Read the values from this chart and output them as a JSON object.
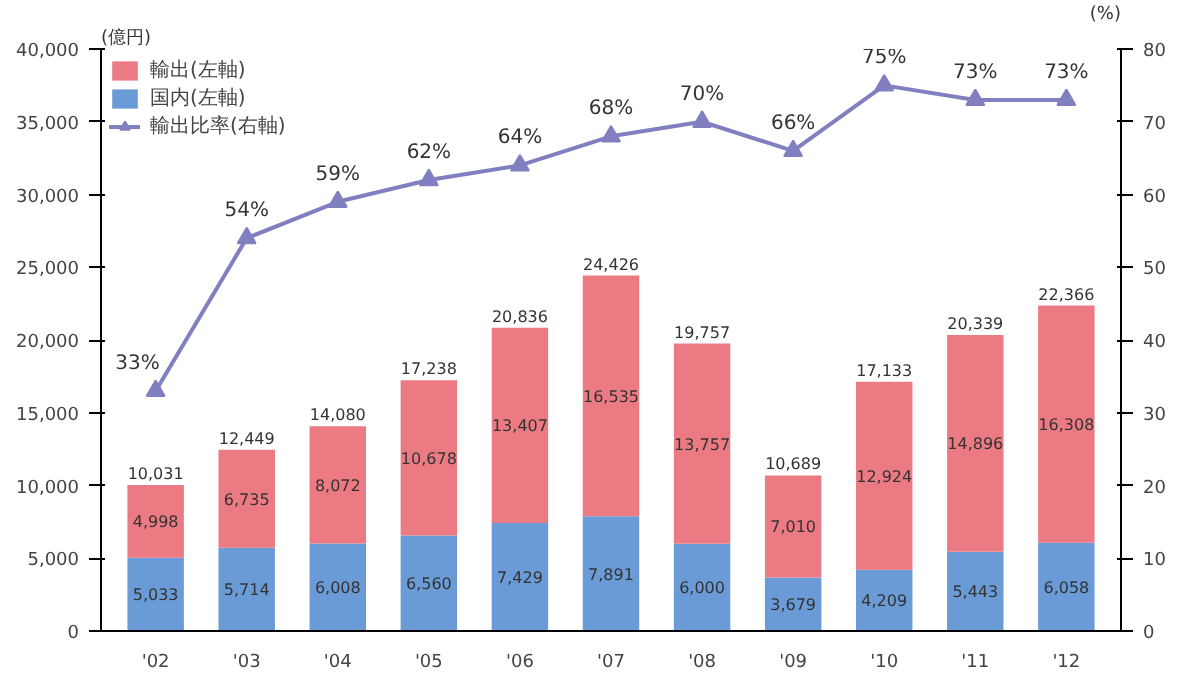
{
  "chart_data": {
    "type": "bar",
    "stacked": true,
    "ylabel": "(億円)",
    "y2label": "(%)",
    "categories": [
      "'02",
      "'03",
      "'04",
      "'05",
      "'06",
      "'07",
      "'08",
      "'09",
      "'10",
      "'11",
      "'12"
    ],
    "series": [
      {
        "name": "国内(左軸)",
        "color": "#6a9bd6",
        "values": [
          5033,
          5714,
          6008,
          6560,
          7429,
          7891,
          6000,
          3679,
          4209,
          5443,
          6058
        ],
        "value_labels": [
          "5,033",
          "5,714",
          "6,008",
          "6,560",
          "7,429",
          "7,891",
          "6,000",
          "3,679",
          "4,209",
          "5,443",
          "6,058"
        ]
      },
      {
        "name": "輸出(左軸)",
        "color": "#ec7a83",
        "values": [
          4998,
          6735,
          8072,
          10678,
          13407,
          16535,
          13757,
          7010,
          12924,
          14896,
          16308
        ],
        "value_labels": [
          "4,998",
          "6,735",
          "8,072",
          "10,678",
          "13,407",
          "16,535",
          "13,757",
          "7,010",
          "12,924",
          "14,896",
          "16,308"
        ]
      },
      {
        "name": "輸出比率(右軸)",
        "type": "line",
        "axis": "y2",
        "color": "#8080c0",
        "marker": "triangle",
        "values": [
          33,
          54,
          59,
          62,
          64,
          68,
          70,
          66,
          75,
          73,
          73
        ],
        "value_labels": [
          "33%",
          "54%",
          "59%",
          "62%",
          "64%",
          "68%",
          "70%",
          "66%",
          "75%",
          "73%",
          "73%"
        ]
      }
    ],
    "totals": [
      "10,031",
      "12,449",
      "14,080",
      "17,238",
      "20,836",
      "24,426",
      "19,757",
      "10,689",
      "17,133",
      "20,339",
      "22,366"
    ],
    "ylim": [
      0,
      40000
    ],
    "yticks": [
      0,
      {
        "value": 5000,
        "label": "5,000"
      },
      {
        "value": 10000,
        "label": "10,000"
      },
      {
        "value": 15000,
        "label": "15,000"
      },
      {
        "value": 20000,
        "label": "20,000"
      },
      {
        "value": 25000,
        "label": "25,000"
      },
      {
        "value": 30000,
        "label": "30,000"
      },
      {
        "value": 35000,
        "label": "35,000"
      },
      {
        "value": 40000,
        "label": "40,000"
      }
    ],
    "y2lim": [
      0,
      80
    ],
    "y2ticks": [
      0,
      10,
      20,
      30,
      40,
      50,
      60,
      70,
      80
    ],
    "grid": false,
    "legend": "top left"
  }
}
